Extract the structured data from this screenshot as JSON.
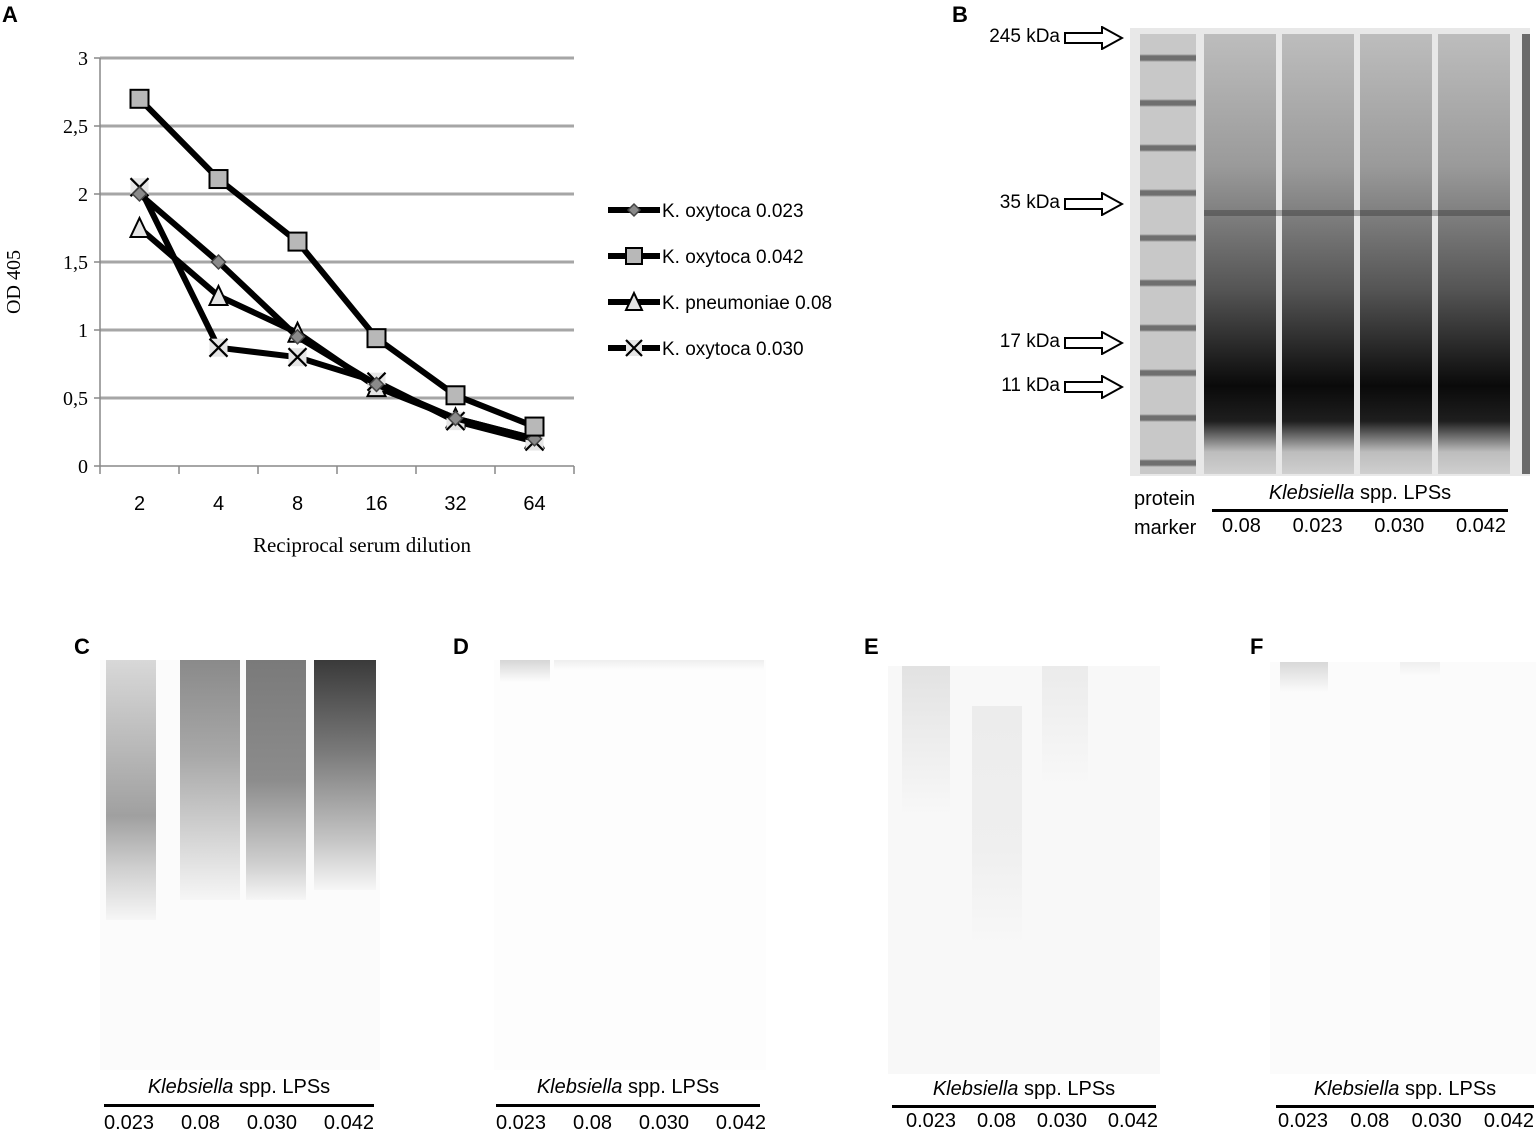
{
  "panels": {
    "a": "A",
    "b": "B",
    "c": "C",
    "d": "D",
    "e": "E",
    "f": "F"
  },
  "chart_data": {
    "type": "line",
    "x": [
      "2",
      "4",
      "8",
      "16",
      "32",
      "64"
    ],
    "xlabel": "Reciprocal serum dilution",
    "ylabel": "OD 405",
    "ylim": [
      0,
      3
    ],
    "yticks": [
      "0",
      "0,5",
      "1",
      "1,5",
      "2",
      "2,5",
      "3"
    ],
    "grid": true,
    "legend_position": "right",
    "series": [
      {
        "name": "K. oxytoca 0.023",
        "marker": "diamond",
        "values": [
          2.0,
          1.5,
          0.95,
          0.6,
          0.35,
          0.2
        ]
      },
      {
        "name": "K. oxytoca 0.042",
        "marker": "square",
        "values": [
          2.7,
          2.11,
          1.65,
          0.94,
          0.52,
          0.29
        ]
      },
      {
        "name": "K. pneumoniae 0.08",
        "marker": "triangle",
        "values": [
          1.75,
          1.25,
          0.98,
          0.58,
          0.35,
          0.2
        ]
      },
      {
        "name": "K. oxytoca 0.030",
        "marker": "x",
        "values": [
          2.05,
          0.87,
          0.8,
          0.62,
          0.33,
          0.18
        ]
      }
    ]
  },
  "gel_b": {
    "kda": [
      "245 kDa",
      "35 kDa",
      "17 kDa",
      "11 kDa"
    ],
    "marker_label_1": "protein",
    "marker_label_2": "marker",
    "caption_italic": "Klebsiella",
    "caption_rest": " spp. LPSs",
    "lanes": [
      "0.08",
      "0.023",
      "0.030",
      "0.042"
    ]
  },
  "blots": {
    "caption_italic": "Klebsiella",
    "caption_rest": " spp. LPSs",
    "lanes": [
      "0.023",
      "0.08",
      "0.030",
      "0.042"
    ]
  }
}
